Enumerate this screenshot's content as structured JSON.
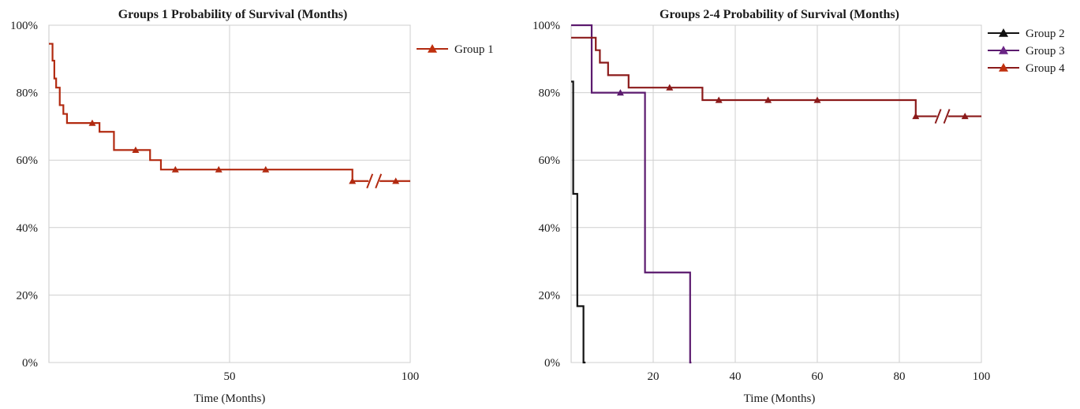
{
  "chart_data": [
    {
      "type": "line",
      "step": true,
      "title": "Groups 1 Probability of Survival (Months)",
      "xlabel": "Time (Months)",
      "ylabel": "",
      "xlim": [
        0,
        100
      ],
      "ylim": [
        0,
        100
      ],
      "x_ticks": [
        "50",
        "100"
      ],
      "y_ticks": [
        "0%",
        "20%",
        "40%",
        "60%",
        "80%",
        "100%"
      ],
      "grid": true,
      "legend": "right",
      "axis_break": "x",
      "series": [
        {
          "name": "Group 1",
          "color": "#b22a10",
          "marker": "triangle",
          "x": [
            0,
            1,
            1.5,
            2,
            3,
            4,
            5,
            7,
            12,
            14,
            18,
            24,
            28,
            31,
            35,
            47,
            60,
            84,
            100
          ],
          "y": [
            94.5,
            89.5,
            84.2,
            81.5,
            76.3,
            73.7,
            71.0,
            71.0,
            71.0,
            68.4,
            63.0,
            63.0,
            60.0,
            57.2,
            57.2,
            57.2,
            57.2,
            53.8,
            53.8
          ],
          "censored_x": [
            12,
            24,
            35,
            47,
            60,
            84,
            96
          ],
          "censored_y": [
            71.0,
            63.0,
            57.2,
            57.2,
            57.2,
            53.8,
            53.8
          ]
        }
      ]
    },
    {
      "type": "line",
      "step": true,
      "title": "Groups 2-4 Probability of Survival (Months)",
      "xlabel": "Time (Months)",
      "ylabel": "",
      "xlim": [
        0,
        100
      ],
      "ylim": [
        0,
        100
      ],
      "x_ticks": [
        "20",
        "40",
        "60",
        "80",
        "100"
      ],
      "y_ticks": [
        "0%",
        "20%",
        "40%",
        "60%",
        "80%",
        "100%"
      ],
      "grid": true,
      "legend": "top-right",
      "axis_break": "x",
      "series": [
        {
          "name": "Group 2",
          "color": "#111111",
          "marker": "triangle",
          "x": [
            0,
            0.5,
            1.5,
            3,
            3.5
          ],
          "y": [
            83.3,
            50.0,
            16.7,
            0,
            0
          ],
          "censored_x": [],
          "censored_y": []
        },
        {
          "name": "Group 3",
          "color": "#5b1a6e",
          "marker": "triangle",
          "x": [
            0,
            5,
            12,
            18,
            29,
            29.3
          ],
          "y": [
            100,
            80.0,
            80.0,
            26.7,
            0,
            0
          ],
          "censored_x": [
            12
          ],
          "censored_y": [
            80.0
          ]
        },
        {
          "name": "Group 4",
          "color": "#8b1a1a",
          "marker": "triangle",
          "x": [
            0,
            6,
            7,
            9,
            14,
            24,
            32,
            36,
            48,
            60,
            84,
            100
          ],
          "y": [
            96.3,
            92.6,
            88.9,
            85.2,
            81.5,
            81.5,
            77.8,
            77.8,
            77.8,
            77.8,
            73.0,
            73.0
          ],
          "censored_x": [
            24,
            36,
            48,
            60,
            84,
            96
          ],
          "censored_y": [
            81.5,
            77.8,
            77.8,
            77.8,
            73.0,
            73.0
          ]
        }
      ]
    }
  ],
  "legend_marker_colors": {
    "group_1": "#c0300e",
    "group_2": "#111111",
    "group_3": "#6a2585",
    "group_4": "#c0300e"
  }
}
